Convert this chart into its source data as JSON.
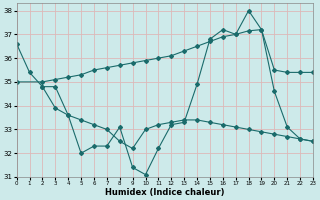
{
  "xlabel": "Humidex (Indice chaleur)",
  "background_color": "#cdeaea",
  "grid_color": "#ddb8b8",
  "line_color": "#1a6b6b",
  "xlim": [
    0,
    23
  ],
  "ylim": [
    31,
    38.3
  ],
  "yticks": [
    31,
    32,
    33,
    34,
    35,
    36,
    37,
    38
  ],
  "xticks": [
    0,
    1,
    2,
    3,
    4,
    5,
    6,
    7,
    8,
    9,
    10,
    11,
    12,
    13,
    14,
    15,
    16,
    17,
    18,
    19,
    20,
    21,
    22,
    23
  ],
  "line1_x": [
    0,
    1,
    2,
    3,
    4,
    5,
    6,
    7,
    8,
    9,
    10,
    11,
    12,
    13,
    14,
    15,
    16,
    17,
    18,
    19,
    20,
    21,
    22,
    23
  ],
  "line1_y": [
    36.6,
    35.4,
    34.8,
    34.8,
    33.6,
    32.0,
    32.3,
    32.3,
    33.1,
    31.4,
    31.1,
    32.2,
    33.2,
    33.3,
    34.9,
    36.8,
    37.2,
    37.0,
    38.0,
    37.2,
    34.6,
    33.1,
    32.6,
    32.5
  ],
  "line2_x": [
    0,
    2,
    3,
    4,
    5,
    6,
    7,
    8,
    9,
    10,
    11,
    12,
    13,
    14,
    15,
    16,
    17,
    18,
    19,
    20,
    21,
    22,
    23
  ],
  "line2_y": [
    35.0,
    35.0,
    35.1,
    35.2,
    35.3,
    35.5,
    35.6,
    35.7,
    35.8,
    35.9,
    36.0,
    36.1,
    36.3,
    36.5,
    36.7,
    36.9,
    37.0,
    37.15,
    37.2,
    35.5,
    35.4,
    35.4,
    35.4
  ],
  "line3_x": [
    2,
    3,
    4,
    5,
    6,
    7,
    8,
    9,
    10,
    11,
    12,
    13,
    14,
    15,
    16,
    17,
    18,
    19,
    20,
    21,
    22,
    23
  ],
  "line3_y": [
    34.8,
    33.9,
    33.6,
    33.4,
    33.2,
    33.0,
    32.5,
    32.2,
    33.0,
    33.2,
    33.3,
    33.4,
    33.4,
    33.3,
    33.2,
    33.1,
    33.0,
    32.9,
    32.8,
    32.7,
    32.6,
    32.5
  ]
}
